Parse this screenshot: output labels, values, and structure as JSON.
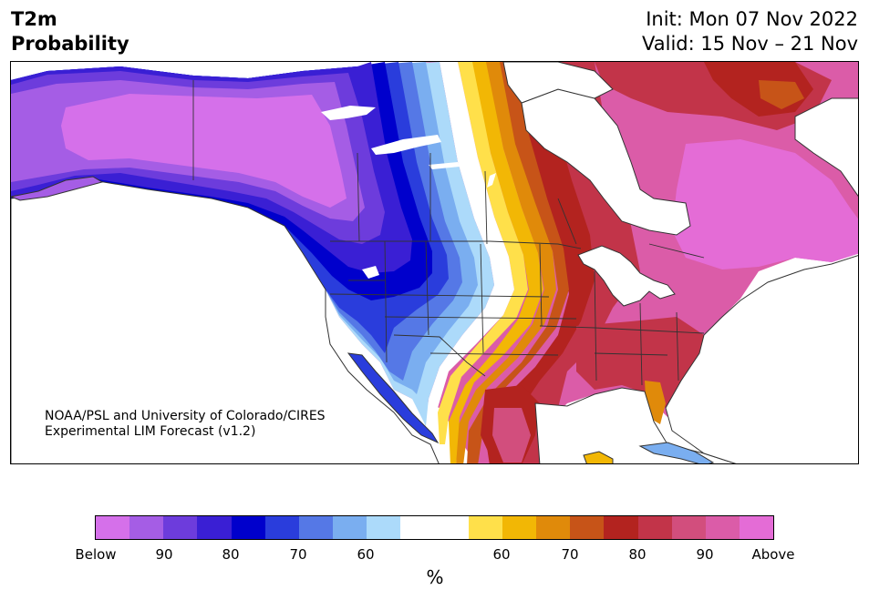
{
  "header": {
    "title_line1": "T2m",
    "title_line2": "Probability",
    "init_line": "Init: Mon 07 Nov 2022",
    "valid_line": "Valid: 15 Nov – 21 Nov"
  },
  "credit": {
    "line1": "NOAA/PSL and University of Colorado/CIRES",
    "line2": "Experimental LIM Forecast (v1.2)"
  },
  "colorbar": {
    "unit_label": "%",
    "colors": [
      "#d570ea",
      "#a55de5",
      "#6d3cdc",
      "#3a1fd4",
      "#0000cc",
      "#2a3ddc",
      "#5578e6",
      "#7aaef0",
      "#acdafa",
      "#ffffff",
      "#ffffff",
      "#ffe04a",
      "#f2b705",
      "#e08a0a",
      "#c75418",
      "#b3231f",
      "#c23449",
      "#d24e7d",
      "#db5ca8",
      "#e46cd6"
    ],
    "tick_labels": [
      "Below",
      "90",
      "80",
      "70",
      "60",
      "60",
      "70",
      "80",
      "90",
      "Above"
    ]
  },
  "map_colors": {
    "ocean": "#ffffff",
    "border": "#333333",
    "below_extreme": "#d570ea",
    "below_90": "#a55de5",
    "below_85": "#6d3cdc",
    "below_80": "#3a1fd4",
    "below_75": "#0000cc",
    "below_70": "#2a3ddc",
    "below_65": "#5578e6",
    "below_60": "#7aaef0",
    "below_55": "#acdafa",
    "above_55": "#ffe04a",
    "above_60": "#f2b705",
    "above_65": "#e08a0a",
    "above_70": "#c75418",
    "above_75": "#b3231f",
    "above_80": "#c23449",
    "above_85": "#d24e7d",
    "above_90": "#db5ca8",
    "above_extreme": "#e46cd6"
  }
}
